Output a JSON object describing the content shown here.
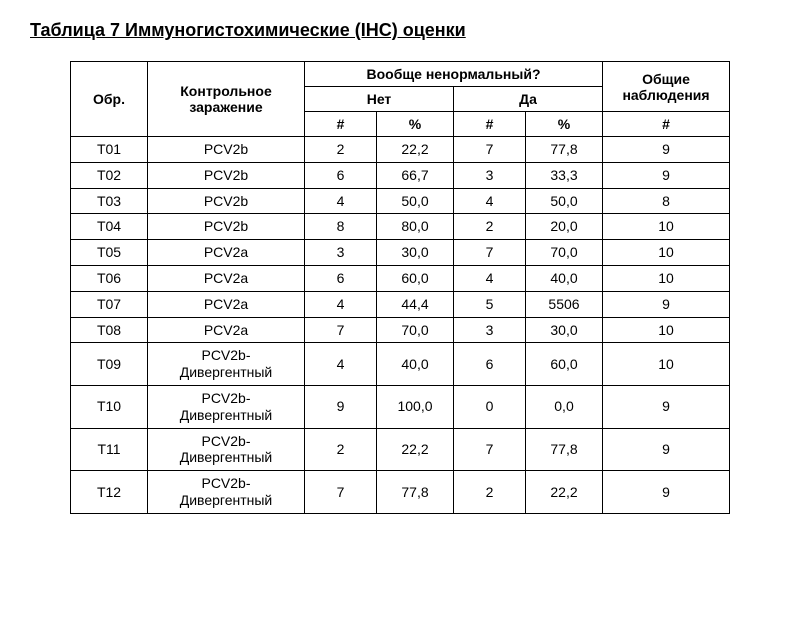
{
  "title": "Таблица 7 Иммуногистохимические (IHC) оценки",
  "headers": {
    "abnormal": "Вообще ненормальный?",
    "obs": "Общие наблюдения",
    "no": "Нет",
    "yes": "Да",
    "obr": "Обр.",
    "challenge": "Контрольное заражение",
    "hash": "#",
    "pct": "%"
  },
  "rows": [
    {
      "obr": "T01",
      "chal": "PCV2b",
      "no_n": "2",
      "no_p": "22,2",
      "yes_n": "7",
      "yes_p": "77,8",
      "obs": "9"
    },
    {
      "obr": "T02",
      "chal": "PCV2b",
      "no_n": "6",
      "no_p": "66,7",
      "yes_n": "3",
      "yes_p": "33,3",
      "obs": "9"
    },
    {
      "obr": "T03",
      "chal": "PCV2b",
      "no_n": "4",
      "no_p": "50,0",
      "yes_n": "4",
      "yes_p": "50,0",
      "obs": "8"
    },
    {
      "obr": "T04",
      "chal": "PCV2b",
      "no_n": "8",
      "no_p": "80,0",
      "yes_n": "2",
      "yes_p": "20,0",
      "obs": "10"
    },
    {
      "obr": "T05",
      "chal": "PCV2a",
      "no_n": "3",
      "no_p": "30,0",
      "yes_n": "7",
      "yes_p": "70,0",
      "obs": "10"
    },
    {
      "obr": "T06",
      "chal": "PCV2a",
      "no_n": "6",
      "no_p": "60,0",
      "yes_n": "4",
      "yes_p": "40,0",
      "obs": "10"
    },
    {
      "obr": "T07",
      "chal": "PCV2a",
      "no_n": "4",
      "no_p": "44,4",
      "yes_n": "5",
      "yes_p": "5506",
      "obs": "9"
    },
    {
      "obr": "T08",
      "chal": "PCV2a",
      "no_n": "7",
      "no_p": "70,0",
      "yes_n": "3",
      "yes_p": "30,0",
      "obs": "10"
    },
    {
      "obr": "T09",
      "chal": "PCV2b-\nДивергентный",
      "no_n": "4",
      "no_p": "40,0",
      "yes_n": "6",
      "yes_p": "60,0",
      "obs": "10"
    },
    {
      "obr": "T10",
      "chal": "PCV2b-\nДивергентный",
      "no_n": "9",
      "no_p": "100,0",
      "yes_n": "0",
      "yes_p": "0,0",
      "obs": "9"
    },
    {
      "obr": "T11",
      "chal": "PCV2b-\nДивергентный",
      "no_n": "2",
      "no_p": "22,2",
      "yes_n": "7",
      "yes_p": "77,8",
      "obs": "9"
    },
    {
      "obr": "T12",
      "chal": "PCV2b-\nДивергентный",
      "no_n": "7",
      "no_p": "77,8",
      "yes_n": "2",
      "yes_p": "22,2",
      "obs": "9"
    }
  ]
}
